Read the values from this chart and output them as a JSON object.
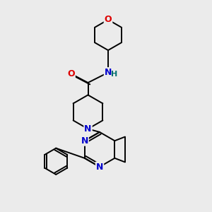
{
  "background_color": "#ebebeb",
  "bond_color": "#000000",
  "atom_colors": {
    "N": "#0000cc",
    "O": "#dd0000",
    "H": "#007070",
    "C": "#000000"
  },
  "figsize": [
    3.0,
    3.0
  ],
  "dpi": 100
}
